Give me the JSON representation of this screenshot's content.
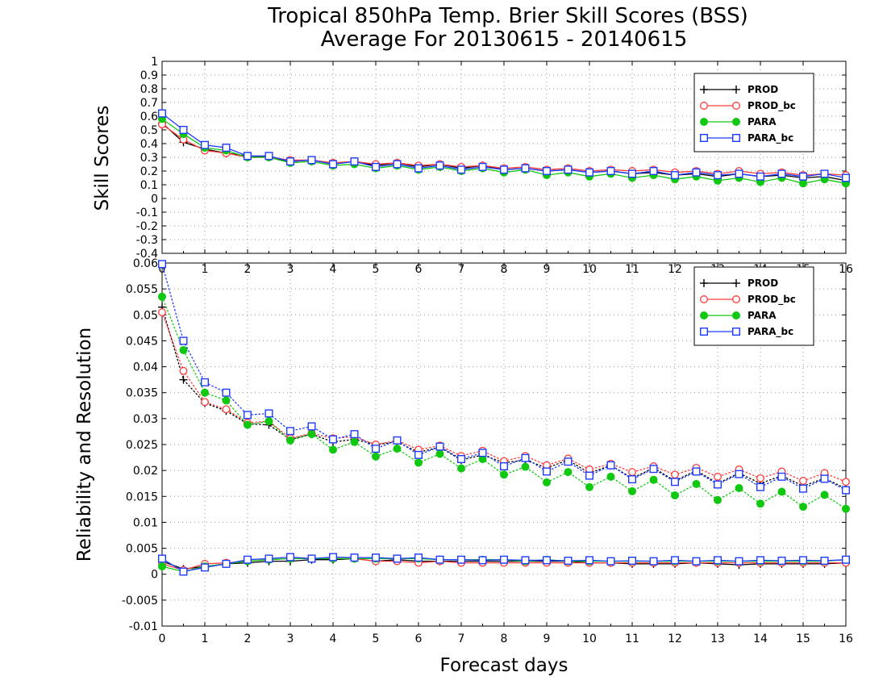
{
  "title_line1": "Tropical 850hPa Temp. Brier Skill Scores (BSS)",
  "title_line2": "Average For 20130615 - 20140615",
  "top_ylabel": "Skill Scores",
  "bottom_ylabel": "Reliability and Resolution",
  "xlabel": "Forecast days",
  "colors": {
    "PROD": "#000000",
    "PROD_bc": "#ff3b3b",
    "PARA": "#10c810",
    "PARA_bc": "#1f3bff"
  },
  "legend": [
    "PROD",
    "PROD_bc",
    "PARA",
    "PARA_bc"
  ],
  "chart_data": [
    {
      "type": "line",
      "ylabel": "Skill Scores",
      "xlim": [
        0,
        16
      ],
      "ylim": [
        -0.4,
        1
      ],
      "xticks": [
        "0",
        "1",
        "2",
        "3",
        "4",
        "5",
        "6",
        "7",
        "8",
        "9",
        "10",
        "11",
        "12",
        "13",
        "14",
        "15",
        "16"
      ],
      "yticks": [
        "-0.4",
        "-0.3",
        "-0.2",
        "-0.1",
        "0",
        "0.1",
        "0.2",
        "0.3",
        "0.4",
        "0.5",
        "0.6",
        "0.7",
        "0.8",
        "0.9",
        "1"
      ],
      "grid": true,
      "legend_position": "top-right",
      "x": [
        0,
        0.5,
        1,
        1.5,
        2,
        2.5,
        3,
        3.5,
        4,
        4.5,
        5,
        5.5,
        6,
        6.5,
        7,
        7.5,
        8,
        8.5,
        9,
        9.5,
        10,
        10.5,
        11,
        11.5,
        12,
        12.5,
        13,
        13.5,
        14,
        14.5,
        15,
        15.5,
        16
      ],
      "series": [
        {
          "name": "PROD",
          "marker": "plus",
          "values": [
            0.55,
            0.41,
            0.36,
            0.33,
            0.31,
            0.3,
            0.27,
            0.28,
            0.25,
            0.27,
            0.24,
            0.26,
            0.23,
            0.25,
            0.22,
            0.24,
            0.21,
            0.22,
            0.2,
            0.21,
            0.19,
            0.2,
            0.18,
            0.19,
            0.17,
            0.18,
            0.16,
            0.18,
            0.16,
            0.17,
            0.15,
            0.16,
            0.13
          ]
        },
        {
          "name": "PROD_bc",
          "marker": "circle-open",
          "values": [
            0.54,
            0.43,
            0.35,
            0.33,
            0.3,
            0.3,
            0.28,
            0.28,
            0.26,
            0.27,
            0.25,
            0.26,
            0.24,
            0.25,
            0.23,
            0.24,
            0.22,
            0.23,
            0.21,
            0.22,
            0.2,
            0.21,
            0.2,
            0.21,
            0.19,
            0.2,
            0.18,
            0.2,
            0.18,
            0.19,
            0.17,
            0.18,
            0.17
          ]
        },
        {
          "name": "PARA",
          "marker": "circle-filled",
          "values": [
            0.58,
            0.47,
            0.37,
            0.35,
            0.3,
            0.3,
            0.26,
            0.27,
            0.24,
            0.25,
            0.22,
            0.24,
            0.21,
            0.23,
            0.2,
            0.22,
            0.19,
            0.21,
            0.17,
            0.19,
            0.16,
            0.18,
            0.15,
            0.17,
            0.14,
            0.16,
            0.13,
            0.15,
            0.12,
            0.15,
            0.11,
            0.14,
            0.11
          ]
        },
        {
          "name": "PARA_bc",
          "marker": "square-open",
          "values": [
            0.62,
            0.5,
            0.39,
            0.37,
            0.31,
            0.31,
            0.27,
            0.28,
            0.25,
            0.27,
            0.23,
            0.25,
            0.22,
            0.24,
            0.21,
            0.23,
            0.21,
            0.22,
            0.2,
            0.21,
            0.19,
            0.2,
            0.18,
            0.2,
            0.17,
            0.19,
            0.17,
            0.18,
            0.16,
            0.18,
            0.16,
            0.18,
            0.15
          ]
        }
      ]
    },
    {
      "type": "line",
      "ylabel": "Reliability and Resolution",
      "xlabel": "Forecast days",
      "xlim": [
        0,
        16
      ],
      "ylim": [
        -0.01,
        0.06
      ],
      "xticks": [
        "0",
        "1",
        "2",
        "3",
        "4",
        "5",
        "6",
        "7",
        "8",
        "9",
        "10",
        "11",
        "12",
        "13",
        "14",
        "15",
        "16"
      ],
      "yticks": [
        "-0.01",
        "-0.005",
        "0",
        "0.005",
        "0.01",
        "0.015",
        "0.02",
        "0.025",
        "0.03",
        "0.035",
        "0.04",
        "0.045",
        "0.05",
        "0.055",
        "0.06"
      ],
      "grid": true,
      "legend_position": "top-right",
      "x": [
        0,
        0.5,
        1,
        1.5,
        2,
        2.5,
        3,
        3.5,
        4,
        4.5,
        5,
        5.5,
        6,
        6.5,
        7,
        7.5,
        8,
        8.5,
        9,
        9.5,
        10,
        10.5,
        11,
        11.5,
        12,
        12.5,
        13,
        13.5,
        14,
        14.5,
        15,
        15.5,
        16
      ],
      "series": [
        {
          "name": "PROD",
          "group": "resolution",
          "marker": "plus",
          "values": [
            0.0515,
            0.0375,
            0.033,
            0.0315,
            0.029,
            0.0288,
            0.026,
            0.027,
            0.0255,
            0.026,
            0.025,
            0.0255,
            0.0235,
            0.0245,
            0.022,
            0.023,
            0.0215,
            0.022,
            0.0205,
            0.022,
            0.0195,
            0.021,
            0.0185,
            0.0205,
            0.018,
            0.02,
            0.0175,
            0.0195,
            0.0175,
            0.019,
            0.017,
            0.0185,
            0.0165
          ]
        },
        {
          "name": "PROD_bc",
          "group": "resolution",
          "marker": "circle-open",
          "values": [
            0.0505,
            0.0392,
            0.0332,
            0.0318,
            0.0292,
            0.0295,
            0.0262,
            0.0272,
            0.0262,
            0.0265,
            0.025,
            0.0258,
            0.024,
            0.0248,
            0.0228,
            0.0238,
            0.0218,
            0.0228,
            0.021,
            0.0223,
            0.0202,
            0.0213,
            0.0197,
            0.0208,
            0.0192,
            0.0205,
            0.0188,
            0.0202,
            0.0185,
            0.0198,
            0.018,
            0.0195,
            0.0178
          ]
        },
        {
          "name": "PARA",
          "group": "resolution",
          "marker": "circle-filled",
          "values": [
            0.0535,
            0.0432,
            0.035,
            0.0335,
            0.0288,
            0.0295,
            0.0258,
            0.027,
            0.024,
            0.0255,
            0.0227,
            0.0242,
            0.0215,
            0.0232,
            0.0204,
            0.0222,
            0.0192,
            0.0207,
            0.0177,
            0.0197,
            0.0168,
            0.0188,
            0.016,
            0.0182,
            0.0152,
            0.0174,
            0.0143,
            0.0166,
            0.0136,
            0.0159,
            0.013,
            0.0153,
            0.0126
          ]
        },
        {
          "name": "PARA_bc",
          "group": "resolution",
          "marker": "square-open",
          "values": [
            0.0598,
            0.045,
            0.037,
            0.035,
            0.0307,
            0.031,
            0.0276,
            0.0285,
            0.026,
            0.027,
            0.0242,
            0.0258,
            0.023,
            0.0246,
            0.0222,
            0.0234,
            0.0208,
            0.0224,
            0.0198,
            0.0217,
            0.019,
            0.021,
            0.0183,
            0.0203,
            0.0178,
            0.0198,
            0.0173,
            0.0193,
            0.0168,
            0.0188,
            0.0165,
            0.0184,
            0.0162
          ]
        },
        {
          "name": "PROD",
          "group": "reliability",
          "marker": "plus",
          "values": [
            0.0025,
            0.001,
            0.0015,
            0.002,
            0.0022,
            0.0025,
            0.0025,
            0.0028,
            0.0028,
            0.003,
            0.0025,
            0.0028,
            0.0025,
            0.0025,
            0.0025,
            0.0025,
            0.0025,
            0.0025,
            0.0025,
            0.0025,
            0.0022,
            0.0022,
            0.002,
            0.002,
            0.002,
            0.0022,
            0.002,
            0.0018,
            0.002,
            0.002,
            0.002,
            0.002,
            0.0022
          ]
        },
        {
          "name": "PROD_bc",
          "group": "reliability",
          "marker": "circle-open",
          "values": [
            0.002,
            0.0008,
            0.002,
            0.0022,
            0.0025,
            0.0028,
            0.003,
            0.003,
            0.003,
            0.003,
            0.0025,
            0.0025,
            0.0022,
            0.0025,
            0.0022,
            0.0022,
            0.0022,
            0.0022,
            0.0022,
            0.0022,
            0.0022,
            0.0022,
            0.0022,
            0.0022,
            0.0022,
            0.0022,
            0.0022,
            0.0022,
            0.0022,
            0.0022,
            0.0022,
            0.0022,
            0.0022
          ]
        },
        {
          "name": "PARA",
          "group": "reliability",
          "marker": "circle-filled",
          "values": [
            0.0015,
            0.0005,
            0.0015,
            0.002,
            0.0025,
            0.0028,
            0.003,
            0.003,
            0.003,
            0.003,
            0.003,
            0.003,
            0.003,
            0.0028,
            0.0028,
            0.0028,
            0.0028,
            0.0025,
            0.0028,
            0.0025,
            0.0025,
            0.0025,
            0.0025,
            0.0025,
            0.0025,
            0.0025,
            0.0025,
            0.0025,
            0.0025,
            0.0025,
            0.0025,
            0.0025,
            0.0028
          ]
        },
        {
          "name": "PARA_bc",
          "group": "reliability",
          "marker": "square-open",
          "values": [
            0.003,
            0.0005,
            0.0013,
            0.002,
            0.0028,
            0.003,
            0.0033,
            0.003,
            0.0033,
            0.0032,
            0.0032,
            0.003,
            0.0032,
            0.0028,
            0.0028,
            0.0027,
            0.0028,
            0.0027,
            0.0027,
            0.0026,
            0.0027,
            0.0025,
            0.0026,
            0.0025,
            0.0027,
            0.0025,
            0.0027,
            0.0025,
            0.0027,
            0.0026,
            0.0027,
            0.0026,
            0.0028
          ]
        }
      ]
    }
  ]
}
